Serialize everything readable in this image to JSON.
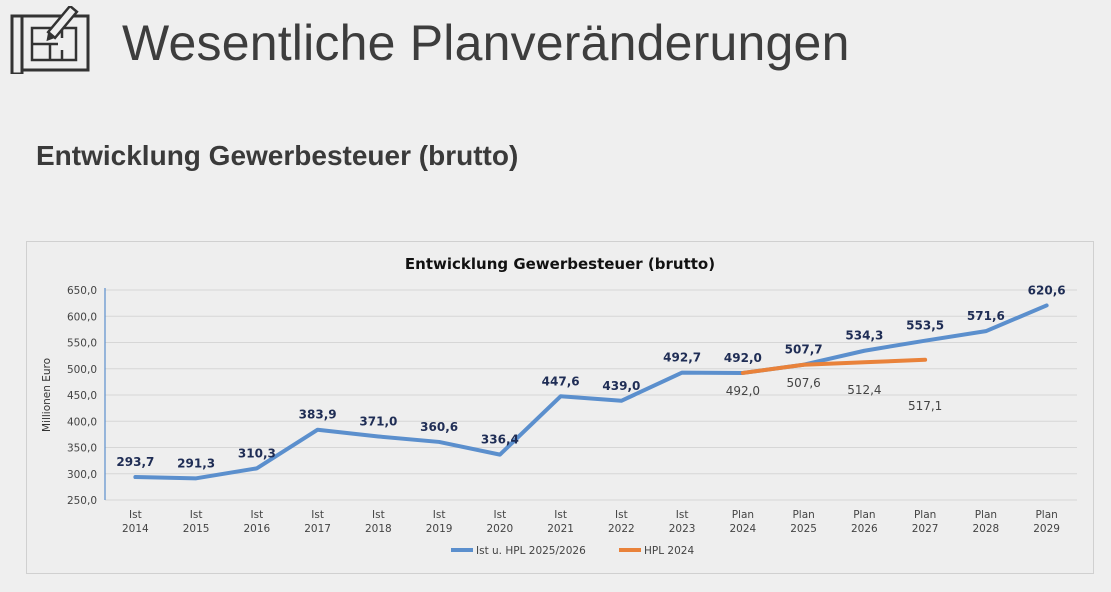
{
  "slide": {
    "title": "Wesentliche Planveränderungen",
    "subtitle": "Entwicklung Gewerbesteuer (brutto)",
    "logo_icon": "blueprint-pencil-icon"
  },
  "chart_data": {
    "type": "line",
    "title": "Entwicklung  Gewerbesteuer  (brutto)",
    "xlabel": "",
    "ylabel": "Millionen Euro",
    "ylim": [
      250,
      650
    ],
    "yticks": [
      "250,0",
      "300,0",
      "350,0",
      "400,0",
      "450,0",
      "500,0",
      "550,0",
      "600,0",
      "650,0"
    ],
    "categories": [
      [
        "Ist",
        "2014"
      ],
      [
        "Ist",
        "2015"
      ],
      [
        "Ist",
        "2016"
      ],
      [
        "Ist",
        "2017"
      ],
      [
        "Ist",
        "2018"
      ],
      [
        "Ist",
        "2019"
      ],
      [
        "Ist",
        "2020"
      ],
      [
        "Ist",
        "2021"
      ],
      [
        "Ist",
        "2022"
      ],
      [
        "Ist",
        "2023"
      ],
      [
        "Plan",
        "2024"
      ],
      [
        "Plan",
        "2025"
      ],
      [
        "Plan",
        "2026"
      ],
      [
        "Plan",
        "2027"
      ],
      [
        "Plan",
        "2028"
      ],
      [
        "Plan",
        "2029"
      ]
    ],
    "grid": true,
    "legend_position": "bottom",
    "series": [
      {
        "name": "Ist  u.  HPL  2025/2026",
        "color": "#5b8fcd",
        "values": [
          293.7,
          291.3,
          310.3,
          383.9,
          371.0,
          360.6,
          336.4,
          447.6,
          439.0,
          492.7,
          492.0,
          507.7,
          534.3,
          553.5,
          571.6,
          620.6
        ],
        "labels": [
          "293,7",
          "291,3",
          "310,3",
          "383,9",
          "371,0",
          "360,6",
          "336,4",
          "447,6",
          "439,0",
          "492,7",
          "492,0",
          "507,7",
          "534,3",
          "553,5",
          "571,6",
          "620,6"
        ]
      },
      {
        "name": "HPL  2024",
        "color": "#e9823a",
        "values": [
          null,
          null,
          null,
          null,
          null,
          null,
          null,
          null,
          null,
          null,
          492.0,
          507.6,
          512.4,
          517.1,
          null,
          null
        ],
        "labels": [
          null,
          null,
          null,
          null,
          null,
          null,
          null,
          null,
          null,
          null,
          "492,0",
          "507,6",
          "512,4",
          "517,1",
          null,
          null
        ]
      }
    ]
  }
}
